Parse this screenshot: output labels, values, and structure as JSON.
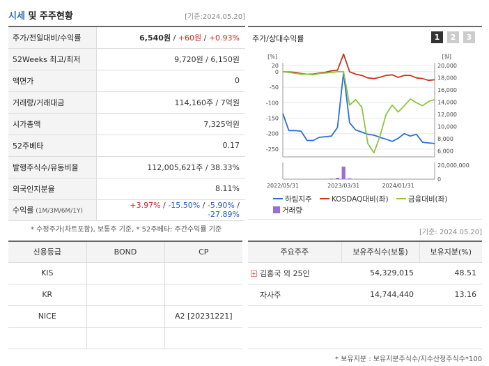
{
  "header": {
    "title_part1": "시세",
    "title_part2": " 및 주주현황",
    "date": "[기준:2024.05.20]"
  },
  "stock": {
    "rows": [
      {
        "label": "주가/전일대비/수익률"
      },
      {
        "label": "52Weeks 최고/최저",
        "value": "9,720원 / 6,150원"
      },
      {
        "label": "액면가",
        "value": "0"
      },
      {
        "label": "거래량/거래대금",
        "value": "114,160주 / 7억원"
      },
      {
        "label": "시가총액",
        "value": "7,325억원"
      },
      {
        "label": "52주베타",
        "value": "0.17"
      },
      {
        "label": "발행주식수/유동비율",
        "value": "112,005,621주 / 38.33%"
      },
      {
        "label": "외국인지분율",
        "value": "8.11%"
      },
      {
        "label": "수익률",
        "label_sub": " (1M/3M/6M/1Y)"
      }
    ],
    "price": "6,540원",
    "change": "+60원",
    "change_pct": "+0.93%",
    "returns": [
      "+3.97%",
      "-15.50%",
      "-5.90%",
      "-27.89%"
    ],
    "note": "* 수정주가(차트포함), 보통주 기준, * 52주베타: 주간수익률 기준"
  },
  "chart_box": {
    "title": "주가/상대수익률",
    "tabs": [
      "1",
      "2",
      "3"
    ],
    "active_tab": "1"
  },
  "chart_data": {
    "type": "line",
    "left_unit": "[%]",
    "right_unit": "[원]",
    "left_ticks": [
      "20",
      "0",
      "-50",
      "-100",
      "-150",
      "-200",
      "-250"
    ],
    "left_tick_values": [
      20,
      0,
      -50,
      -100,
      -150,
      -200,
      -250
    ],
    "left_ylim": [
      -275,
      20
    ],
    "right_ticks": [
      "20,000",
      "18,000",
      "16,000",
      "14,000",
      "12,000",
      "10,000",
      "8,000",
      "6,000"
    ],
    "right_tick_values": [
      20000,
      18000,
      16000,
      14000,
      12000,
      10000,
      8000,
      6000
    ],
    "right_ylim": [
      5000,
      20000
    ],
    "volume_ticks": [
      "20,000,000",
      "0"
    ],
    "volume_ylim": [
      0,
      20000000
    ],
    "x_labels": [
      "2022/05/31",
      "2023/03/31",
      "2024/01/31"
    ],
    "x_label_index": [
      0,
      10,
      19
    ],
    "n_points": 26,
    "series": [
      {
        "name": "하림지주",
        "color": "#2a6ed6",
        "axis": "left",
        "values": [
          -135,
          -190,
          -190,
          -192,
          -222,
          -222,
          -212,
          -210,
          -208,
          -180,
          -3,
          -165,
          -188,
          -195,
          -202,
          -205,
          -212,
          -218,
          -225,
          -215,
          -200,
          -208,
          -202,
          -228,
          -230,
          -232
        ]
      },
      {
        "name": "KOSDAQ대비(좌)",
        "color": "#c8341a",
        "axis": "left",
        "values": [
          0,
          -1,
          -2,
          -6,
          -8,
          -8,
          -4,
          -2,
          3,
          5,
          57,
          0,
          -8,
          -12,
          -20,
          -22,
          -18,
          -12,
          -10,
          -18,
          -12,
          -12,
          -20,
          -22,
          -28,
          -26
        ]
      },
      {
        "name": "금융대비(좌)",
        "color": "#8cc63f",
        "axis": "left",
        "values": [
          0,
          -2,
          -5,
          -8,
          -8,
          -10,
          -6,
          -4,
          -2,
          0,
          0,
          -108,
          -90,
          -115,
          -232,
          -262,
          -208,
          -138,
          -108,
          -130,
          -110,
          -88,
          -100,
          -110,
          -96,
          -90
        ]
      },
      {
        "name": "거래량",
        "color": "#9a6fd0",
        "axis": "volume",
        "values": [
          0,
          0,
          0,
          0,
          0,
          0,
          0,
          0,
          800000,
          2000000,
          18000000,
          1200000,
          500000,
          300000,
          100000,
          0,
          0,
          0,
          0,
          200000,
          0,
          0,
          0,
          0,
          0,
          0
        ]
      }
    ]
  },
  "credit": {
    "headers": [
      "신용등급",
      "BOND",
      "CP"
    ],
    "rows": [
      [
        "KIS",
        "",
        ""
      ],
      [
        "KR",
        "",
        ""
      ],
      [
        "NICE",
        "",
        "A2  [20231221]"
      ],
      [
        "",
        "",
        ""
      ]
    ]
  },
  "holders": {
    "date": "[기준: 2024.05.20]",
    "headers": [
      "주요주주",
      "보유주식수(보통)",
      "보유지분(%)"
    ],
    "rows": [
      {
        "name": "김홍국 외 25인",
        "shares": "54,329,015",
        "pct": "48.51",
        "expandable": true
      },
      {
        "name": "자사주",
        "shares": "14,744,440",
        "pct": "13.16",
        "expandable": false
      }
    ],
    "note": "* 보유지분 : 보유지분주식수/지수산정주식수*100"
  }
}
